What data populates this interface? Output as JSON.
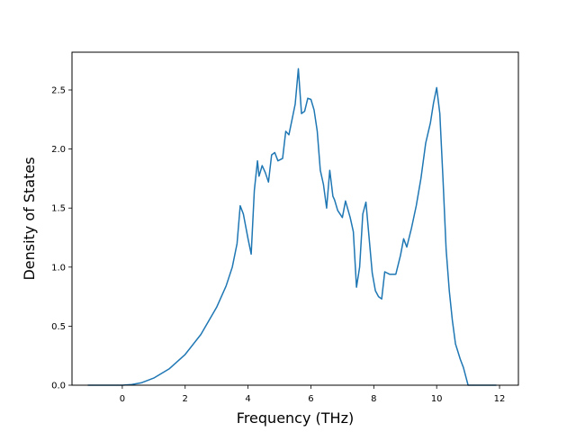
{
  "chart_data": {
    "type": "line",
    "title": "",
    "xlabel": "Frequency (THz)",
    "ylabel": "Density of States",
    "xlim": [
      -1.6,
      12.6
    ],
    "ylim": [
      0.0,
      2.82
    ],
    "xticks": [
      0,
      2,
      4,
      6,
      8,
      10,
      12
    ],
    "yticks": [
      0.0,
      0.5,
      1.0,
      1.5,
      2.0,
      2.5
    ],
    "xtick_labels": [
      "0",
      "2",
      "4",
      "6",
      "8",
      "10",
      "12"
    ],
    "ytick_labels": [
      "0.0",
      "0.5",
      "1.0",
      "1.5",
      "2.0",
      "2.5"
    ],
    "grid": false,
    "legend": "none",
    "series": [
      {
        "color": "#1f77b4",
        "x": [
          -1.1,
          0.0,
          0.3,
          0.6,
          1.0,
          1.5,
          2.0,
          2.5,
          3.0,
          3.3,
          3.5,
          3.65,
          3.75,
          3.85,
          4.0,
          4.1,
          4.2,
          4.3,
          4.35,
          4.45,
          4.55,
          4.65,
          4.75,
          4.85,
          4.95,
          5.1,
          5.2,
          5.3,
          5.4,
          5.5,
          5.6,
          5.7,
          5.8,
          5.9,
          6.0,
          6.1,
          6.2,
          6.3,
          6.4,
          6.5,
          6.6,
          6.7,
          6.75,
          6.85,
          7.0,
          7.1,
          7.25,
          7.35,
          7.45,
          7.55,
          7.65,
          7.75,
          7.85,
          7.95,
          8.05,
          8.15,
          8.25,
          8.35,
          8.5,
          8.7,
          8.85,
          8.95,
          9.05,
          9.2,
          9.35,
          9.5,
          9.65,
          9.8,
          9.9,
          10.0,
          10.1,
          10.2,
          10.3,
          10.4,
          10.5,
          10.6,
          10.75,
          10.85,
          11.0,
          11.5,
          11.9
        ],
        "y": [
          0.0,
          0.0,
          0.005,
          0.02,
          0.06,
          0.14,
          0.26,
          0.43,
          0.66,
          0.84,
          1.0,
          1.2,
          1.52,
          1.45,
          1.24,
          1.11,
          1.65,
          1.9,
          1.77,
          1.86,
          1.8,
          1.72,
          1.95,
          1.97,
          1.9,
          1.92,
          2.15,
          2.12,
          2.25,
          2.38,
          2.68,
          2.3,
          2.32,
          2.43,
          2.42,
          2.33,
          2.15,
          1.82,
          1.7,
          1.5,
          1.82,
          1.6,
          1.57,
          1.48,
          1.42,
          1.56,
          1.42,
          1.3,
          0.83,
          1.0,
          1.45,
          1.55,
          1.25,
          0.95,
          0.8,
          0.75,
          0.73,
          0.96,
          0.94,
          0.94,
          1.1,
          1.24,
          1.17,
          1.33,
          1.52,
          1.75,
          2.05,
          2.22,
          2.39,
          2.52,
          2.3,
          1.75,
          1.15,
          0.8,
          0.55,
          0.35,
          0.22,
          0.15,
          0.0,
          0.0,
          0.0
        ]
      }
    ]
  }
}
